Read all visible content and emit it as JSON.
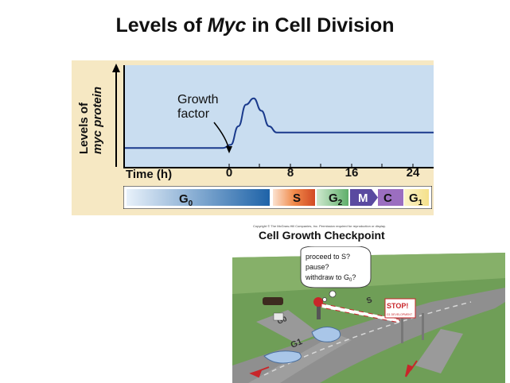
{
  "title_prefix": "Levels of ",
  "title_italic": "Myc",
  "title_suffix": " in Cell Division",
  "y_axis": {
    "line1": "Levels of",
    "line2": "myc protein"
  },
  "annotation": {
    "line1": "Growth",
    "line2": "factor"
  },
  "x_axis": {
    "label": "Time (h)",
    "ticks": [
      "0",
      "8",
      "16",
      "24"
    ]
  },
  "phases": {
    "g0": "G",
    "g0_sub": "0",
    "s": "S",
    "g2": "G",
    "g2_sub": "2",
    "m": "M",
    "c": "C",
    "g1": "G",
    "g1_sub": "1"
  },
  "copyright": "Copyright © The McGraw-Hill Companies, Inc. Permission required for reproduction or display.",
  "checkpoint_title": "Cell Growth Checkpoint",
  "speech_bubble": {
    "line1": "proceed to S?",
    "line2": "pause?",
    "line3": "withdraw to G",
    "line3_sub": "0",
    "line3_end": "?"
  },
  "stop_sign": {
    "line1": "STOP!",
    "line2": "G1 DEVELOPMENT"
  },
  "road_labels": {
    "g1": "G1",
    "g0": "G0",
    "s": "S"
  },
  "colors": {
    "panel_bg": "#f6e8c3",
    "plot_bg": "#c9ddf0",
    "curve": "#1a3a8c",
    "g0_dark": "#1e63a8",
    "s_red": "#d24a24",
    "g2_green": "#5fae6a",
    "m_purple": "#5a4aa0",
    "c_purple": "#9b6ec0",
    "g1_yellow": "#f5e08a"
  },
  "chart_data": {
    "type": "line",
    "xlabel": "Time (h)",
    "ylabel": "Levels of myc protein",
    "x_ticks": [
      0,
      8,
      16,
      24
    ],
    "series": [
      {
        "x": [
          -8,
          -4,
          -1,
          0,
          1,
          2,
          3,
          4,
          5,
          6,
          8,
          12,
          16,
          20,
          24
        ],
        "y": [
          0.1,
          0.1,
          0.1,
          0.15,
          0.45,
          0.8,
          0.9,
          0.7,
          0.45,
          0.35,
          0.35,
          0.35,
          0.35,
          0.35,
          0.35
        ]
      }
    ]
  }
}
